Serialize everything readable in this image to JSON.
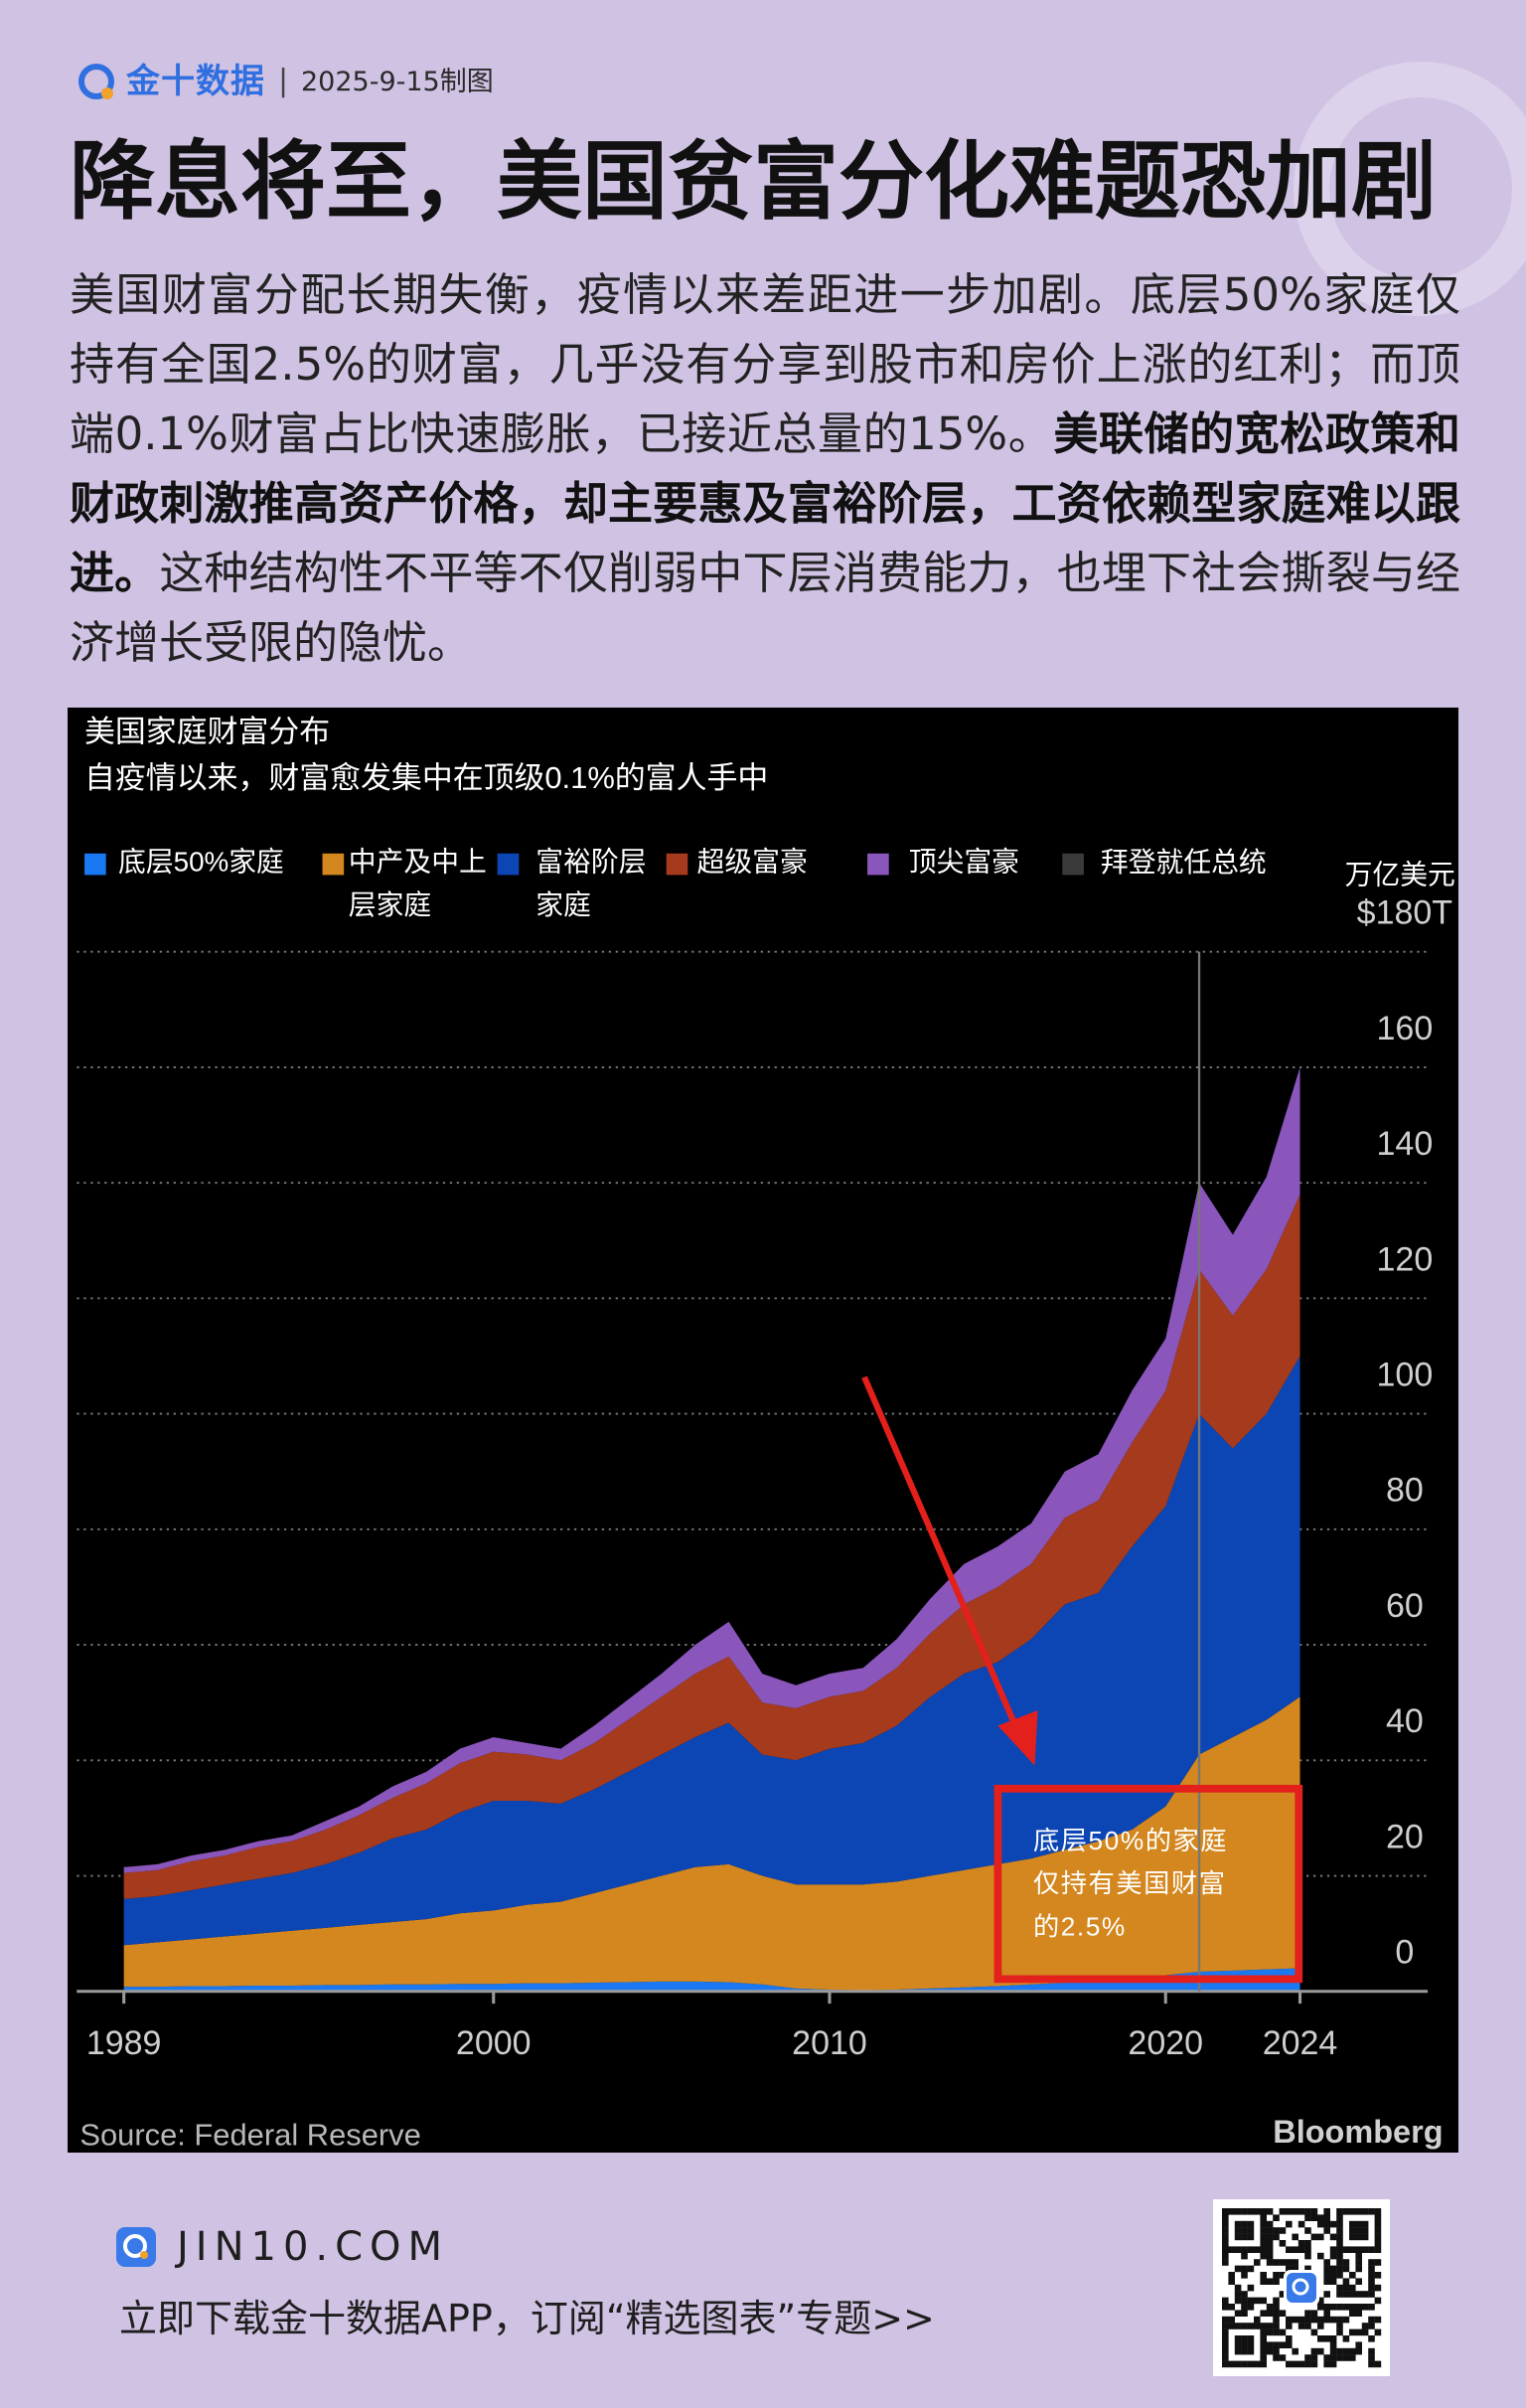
{
  "header": {
    "brand": "金十数据",
    "date": "2025-9-15制图"
  },
  "title": "降息将至，美国贫富分化难题恐加剧",
  "body": [
    {
      "text": "美国财富分配长期失衡，疫情以来差距进一步加剧。底层50%家庭仅持有全国2.5%的财富，几乎没有分享到股市和房价上涨的红利；而顶端0.1%财富占比快速膨胀，已接近总量的15%。",
      "bold": false
    },
    {
      "text": "美联储的宽松政策和财政刺激推高资产价格，却主要惠及富裕阶层，工资依赖型家庭难以跟进。",
      "bold": true
    },
    {
      "text": "这种结构性不平等不仅削弱中下层消费能力，也埋下社会撕裂与经济增长受限的隐忧。",
      "bold": false
    }
  ],
  "chart_data": {
    "type": "area",
    "stacked": true,
    "title": "美国家庭财富分布",
    "subtitle": "自疫情以来，财富愈发集中在顶级0.1%的富人手中",
    "y_unit": "万亿美元",
    "source": "Source: Federal Reserve",
    "brand": "Bloomberg",
    "x": [
      1989,
      1990,
      1991,
      1992,
      1993,
      1994,
      1995,
      1996,
      1997,
      1998,
      1999,
      2000,
      2001,
      2002,
      2003,
      2004,
      2005,
      2006,
      2007,
      2008,
      2009,
      2010,
      2011,
      2012,
      2013,
      2014,
      2015,
      2016,
      2017,
      2018,
      2019,
      2020,
      2021,
      2022,
      2023,
      2024
    ],
    "series": [
      {
        "name": "底层50%家庭",
        "color": "#1a78f2",
        "values": [
          0.8,
          0.8,
          0.9,
          0.9,
          1.0,
          1.0,
          1.1,
          1.1,
          1.2,
          1.2,
          1.3,
          1.3,
          1.4,
          1.4,
          1.5,
          1.6,
          1.7,
          1.7,
          1.6,
          1.2,
          0.5,
          0.3,
          0.2,
          0.3,
          0.5,
          0.7,
          0.9,
          1.2,
          1.5,
          1.8,
          2.2,
          2.8,
          3.4,
          3.6,
          3.8,
          4.0
        ]
      },
      {
        "name": "中产及中上层家庭",
        "color": "#d4871f",
        "values": [
          7.2,
          7.7,
          8.1,
          8.6,
          9,
          9.5,
          9.9,
          10.4,
          10.8,
          11.3,
          12.2,
          12.7,
          13.6,
          14.1,
          15.5,
          16.9,
          18.3,
          19.8,
          20.4,
          18.8,
          18,
          18.2,
          18.3,
          18.7,
          19.5,
          20.3,
          21.1,
          21.8,
          23,
          24.2,
          25.8,
          29.2,
          37.6,
          40.4,
          43.2,
          47
        ]
      },
      {
        "name": "富裕阶层家庭",
        "color": "#0c46b4",
        "values": [
          8,
          8,
          8.5,
          9,
          9.5,
          10,
          11,
          12.5,
          14.5,
          15.5,
          17.5,
          19,
          18,
          17,
          18,
          19.5,
          21,
          22.5,
          24.5,
          21,
          21.5,
          23.5,
          24.5,
          27,
          31,
          34,
          35,
          38,
          42.5,
          43,
          49,
          52,
          59,
          50,
          53,
          59
        ]
      },
      {
        "name": "超级富豪",
        "color": "#a63a1c",
        "values": [
          4.5,
          4.5,
          5,
          5,
          5.5,
          5.5,
          6,
          6.5,
          7,
          8,
          8.5,
          8.5,
          8,
          7.5,
          8,
          9,
          10,
          11,
          11.5,
          9,
          9,
          9,
          9,
          10,
          11,
          12,
          13,
          13,
          15,
          16,
          18,
          20,
          25,
          23,
          25,
          28
        ]
      },
      {
        "name": "顶尖富豪",
        "color": "#8a56bb",
        "values": [
          1,
          1,
          1,
          1,
          1,
          1,
          1.5,
          1.5,
          2,
          2,
          2.5,
          2.5,
          2,
          2,
          3,
          3.5,
          4,
          5,
          6,
          5,
          4,
          4,
          4,
          5,
          6,
          7,
          7,
          7,
          8,
          8,
          9,
          9,
          15,
          14,
          16,
          22
        ]
      }
    ],
    "event": {
      "name": "拜登就任总统",
      "x": 2021,
      "color": "#3a3a3a"
    },
    "annotation": {
      "text": "底层50%的家庭仅持有美国财富的2.5%",
      "color": "#e3201b"
    },
    "xlim": [
      1987.6,
      2027.8
    ],
    "xticks": [
      1989,
      2000,
      2010,
      2020,
      2024
    ],
    "ylim": [
      0,
      180
    ],
    "yticks": [
      0,
      20,
      40,
      60,
      80,
      100,
      120,
      140,
      160,
      {
        "value": 180,
        "label": "$180T"
      }
    ],
    "grid": true
  },
  "footer": {
    "site": "JIN10.COM",
    "cta": "立即下载金十数据APP，订阅“精选图表”专题>>"
  }
}
